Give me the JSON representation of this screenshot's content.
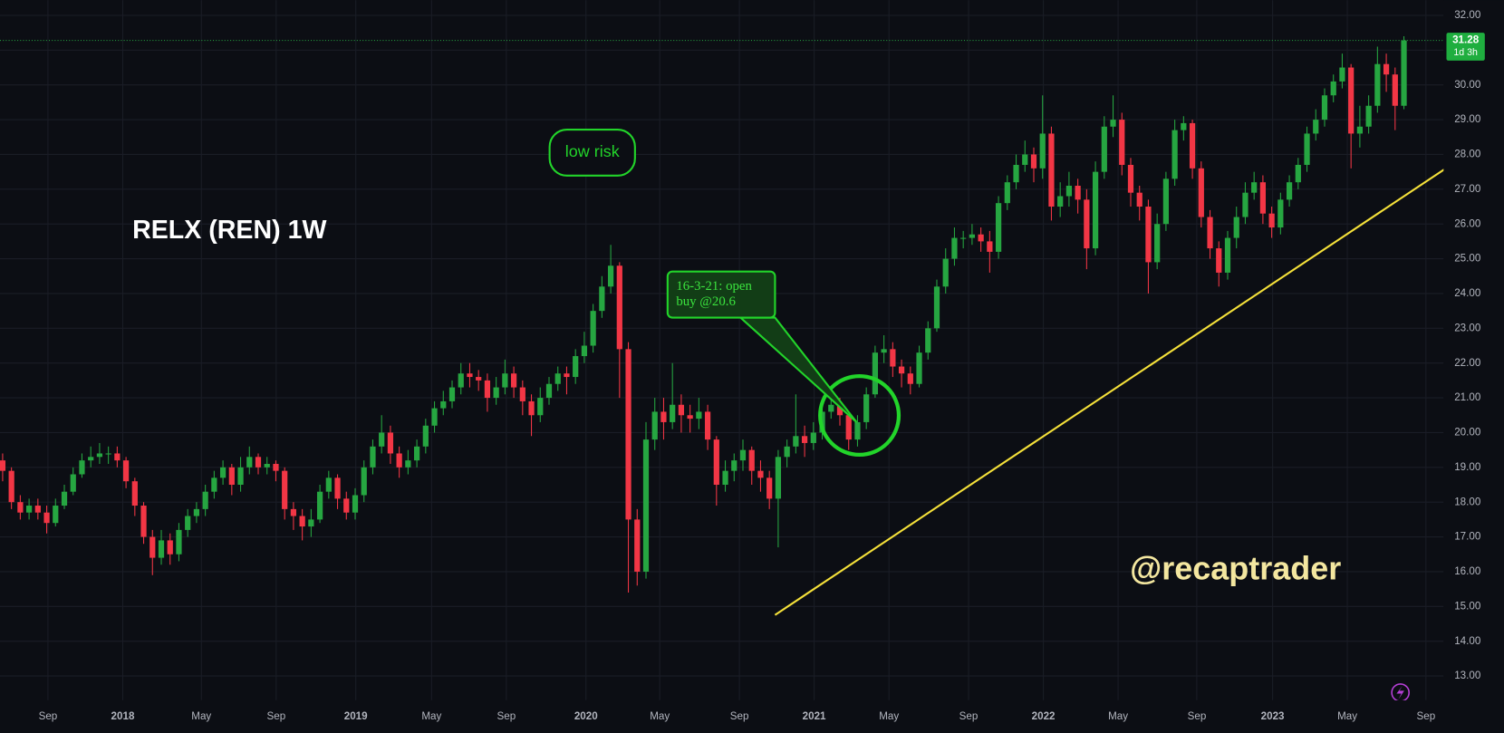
{
  "chart_data": {
    "type": "candlestick",
    "title": "RELX (REN) 1W",
    "watermark": "@recaptrader",
    "annotations": [
      "low risk",
      "16-3-21: open",
      "buy @20.6"
    ],
    "countdown": "1d 3h",
    "up_color": "#26a641",
    "down_color": "#f23645",
    "grid": true,
    "ylim": [
      12.3,
      32.44
    ],
    "yticks": [
      {
        "value": 13,
        "label": "13.00"
      },
      {
        "value": 14,
        "label": "14.00"
      },
      {
        "value": 15,
        "label": "15.00"
      },
      {
        "value": 16,
        "label": "16.00"
      },
      {
        "value": 17,
        "label": "17.00"
      },
      {
        "value": 18,
        "label": "18.00"
      },
      {
        "value": 19,
        "label": "19.00"
      },
      {
        "value": 20,
        "label": "20.00"
      },
      {
        "value": 21,
        "label": "21.00"
      },
      {
        "value": 22,
        "label": "22.00"
      },
      {
        "value": 23,
        "label": "23.00"
      },
      {
        "value": 24,
        "label": "24.00"
      },
      {
        "value": 25,
        "label": "25.00"
      },
      {
        "value": 26,
        "label": "26.00"
      },
      {
        "value": 27,
        "label": "27.00"
      },
      {
        "value": 28,
        "label": "28.00"
      },
      {
        "value": 29,
        "label": "29.00"
      },
      {
        "value": 30,
        "label": "30.00"
      },
      {
        "value": 31,
        "label": "31.00"
      },
      {
        "value": 32,
        "label": "32.00"
      }
    ],
    "xlim": [
      -0.3,
      163.5
    ],
    "xticks": [
      {
        "value": 5.14,
        "label": "Sep"
      },
      {
        "value": 13.63,
        "label": "2018"
      },
      {
        "value": 22.55,
        "label": "May"
      },
      {
        "value": 31.04,
        "label": "Sep"
      },
      {
        "value": 40.07,
        "label": "2019"
      },
      {
        "value": 48.67,
        "label": "May"
      },
      {
        "value": 57.15,
        "label": "Sep"
      },
      {
        "value": 66.19,
        "label": "2020"
      },
      {
        "value": 74.56,
        "label": "May"
      },
      {
        "value": 83.6,
        "label": "Sep"
      },
      {
        "value": 92.08,
        "label": "2021"
      },
      {
        "value": 100.57,
        "label": "May"
      },
      {
        "value": 109.6,
        "label": "Sep"
      },
      {
        "value": 118.09,
        "label": "2022"
      },
      {
        "value": 126.57,
        "label": "May"
      },
      {
        "value": 135.5,
        "label": "Sep"
      },
      {
        "value": 144.1,
        "label": "2023"
      },
      {
        "value": 152.58,
        "label": "May"
      },
      {
        "value": 161.5,
        "label": "Sep"
      }
    ],
    "open": [
      19.2,
      18.9,
      18.0,
      17.7,
      17.9,
      17.7,
      17.4,
      17.9,
      18.3,
      18.8,
      19.2,
      19.3,
      19.4,
      19.4,
      19.2,
      18.6,
      17.9,
      17.0,
      16.4,
      16.9,
      16.5,
      17.2,
      17.6,
      17.8,
      18.3,
      18.7,
      19.0,
      18.5,
      19.0,
      19.3,
      19.0,
      19.1,
      18.9,
      17.8,
      17.6,
      17.3,
      17.5,
      18.3,
      18.7,
      18.1,
      17.7,
      18.2,
      19.0,
      19.6,
      20.0,
      19.4,
      19.0,
      19.2,
      19.6,
      20.2,
      20.7,
      20.9,
      21.3,
      21.7,
      21.6,
      21.5,
      21.0,
      21.3,
      21.7,
      21.3,
      20.9,
      20.5,
      21.0,
      21.4,
      21.7,
      21.6,
      22.2,
      22.5,
      23.5,
      24.2,
      24.8,
      22.4,
      17.5,
      16.0,
      19.8,
      20.6,
      20.3,
      20.8,
      20.5,
      20.4,
      20.6,
      19.8,
      18.5,
      18.9,
      19.2,
      19.5,
      18.9,
      18.7,
      18.1,
      19.3,
      19.6,
      19.9,
      19.7,
      20.0,
      20.6,
      20.8,
      20.5,
      19.8,
      20.3,
      21.1,
      22.3,
      22.4,
      21.9,
      21.7,
      21.4,
      22.3,
      23.0,
      24.2,
      25.0,
      25.6,
      25.6,
      25.7,
      25.5,
      25.2,
      26.6,
      27.2,
      27.7,
      28.0,
      27.6,
      28.6,
      26.5,
      26.8,
      27.1,
      26.7,
      25.3,
      27.5,
      28.8,
      29.0,
      27.7,
      26.9,
      26.5,
      24.9,
      26.0,
      27.3,
      28.7,
      28.9,
      27.6,
      26.2,
      25.3,
      24.6,
      25.6,
      26.2,
      26.9,
      27.2,
      26.3,
      25.9,
      26.7,
      27.2,
      27.7,
      28.6,
      29.0,
      29.7,
      30.1,
      30.5,
      28.6,
      28.8,
      29.4,
      30.6,
      30.3,
      29.4
    ],
    "high": [
      19.4,
      19.0,
      18.2,
      18.1,
      18.1,
      17.9,
      18.1,
      18.5,
      19.0,
      19.4,
      19.6,
      19.7,
      19.6,
      19.6,
      19.3,
      18.7,
      18.0,
      17.2,
      17.2,
      17.1,
      17.4,
      17.8,
      18.0,
      18.5,
      18.9,
      19.2,
      19.1,
      19.3,
      19.6,
      19.4,
      19.3,
      19.2,
      19.0,
      18.0,
      17.8,
      17.8,
      18.5,
      18.9,
      18.8,
      18.3,
      18.4,
      19.2,
      19.8,
      20.5,
      20.2,
      19.6,
      19.5,
      19.8,
      20.4,
      20.9,
      21.2,
      21.5,
      22.0,
      22.0,
      21.8,
      21.7,
      21.6,
      22.1,
      21.9,
      21.5,
      21.1,
      21.3,
      21.6,
      21.9,
      21.9,
      22.4,
      22.9,
      23.7,
      24.5,
      25.4,
      24.9,
      22.6,
      17.8,
      20.3,
      21.0,
      21.0,
      22.0,
      21.1,
      20.8,
      21.0,
      20.8,
      19.9,
      19.2,
      19.4,
      19.8,
      19.6,
      19.2,
      18.9,
      19.5,
      19.8,
      21.1,
      20.2,
      20.3,
      20.9,
      21.3,
      21.0,
      20.6,
      20.5,
      21.3,
      22.5,
      22.8,
      22.6,
      22.1,
      21.9,
      22.5,
      23.2,
      24.4,
      25.3,
      25.9,
      25.8,
      26.0,
      25.9,
      25.8,
      26.8,
      27.4,
      28.0,
      28.4,
      28.2,
      29.7,
      28.8,
      27.2,
      27.5,
      27.3,
      27.0,
      27.8,
      29.1,
      29.7,
      29.2,
      27.9,
      27.1,
      26.7,
      26.3,
      27.5,
      29.0,
      29.1,
      29.0,
      27.8,
      26.4,
      25.5,
      25.8,
      26.5,
      27.2,
      27.5,
      27.4,
      26.5,
      26.9,
      27.4,
      27.9,
      28.8,
      29.3,
      29.9,
      30.3,
      30.9,
      30.6,
      29.4,
      29.7,
      31.1,
      30.9,
      30.5,
      31.4
    ],
    "low": [
      18.6,
      17.8,
      17.5,
      17.5,
      17.5,
      17.1,
      17.3,
      17.8,
      18.2,
      18.7,
      19.0,
      19.1,
      19.1,
      19.0,
      18.4,
      17.6,
      16.8,
      15.9,
      16.2,
      16.2,
      16.3,
      17.0,
      17.4,
      17.6,
      18.1,
      18.5,
      18.2,
      18.3,
      18.8,
      18.8,
      18.8,
      18.6,
      17.5,
      17.2,
      16.9,
      17.0,
      17.4,
      18.1,
      17.8,
      17.5,
      17.5,
      18.0,
      18.8,
      19.4,
      19.1,
      18.7,
      18.8,
      19.0,
      19.4,
      20.0,
      20.5,
      20.7,
      21.1,
      21.3,
      21.2,
      20.6,
      20.8,
      21.1,
      21.0,
      20.5,
      19.9,
      20.3,
      20.8,
      21.2,
      21.1,
      21.4,
      22.0,
      22.3,
      23.3,
      24.0,
      21.0,
      15.4,
      15.6,
      15.8,
      19.5,
      19.8,
      20.1,
      20.0,
      20.0,
      20.1,
      19.5,
      17.9,
      18.3,
      18.6,
      18.9,
      18.5,
      18.3,
      17.8,
      16.7,
      19.0,
      19.4,
      19.3,
      19.5,
      19.8,
      20.4,
      20.2,
      19.5,
      19.6,
      20.1,
      21.0,
      22.0,
      21.6,
      21.3,
      21.1,
      21.3,
      22.1,
      22.9,
      24.0,
      24.8,
      25.3,
      25.4,
      25.2,
      24.6,
      25.0,
      26.4,
      27.0,
      27.5,
      27.2,
      27.3,
      26.1,
      26.2,
      26.5,
      26.3,
      24.7,
      25.1,
      27.3,
      28.5,
      27.4,
      26.5,
      26.1,
      24.0,
      24.7,
      25.8,
      27.1,
      28.4,
      27.3,
      25.9,
      25.0,
      24.2,
      24.4,
      25.3,
      26.0,
      26.7,
      26.0,
      25.6,
      25.7,
      26.5,
      27.0,
      27.5,
      28.4,
      28.8,
      29.5,
      29.9,
      27.6,
      28.2,
      28.6,
      29.2,
      29.8,
      28.7,
      29.3
    ],
    "close": [
      18.9,
      18.0,
      17.7,
      17.9,
      17.7,
      17.4,
      17.9,
      18.3,
      18.8,
      19.2,
      19.3,
      19.4,
      19.4,
      19.2,
      18.6,
      17.9,
      17.0,
      16.4,
      16.9,
      16.5,
      17.2,
      17.6,
      17.8,
      18.3,
      18.7,
      19.0,
      18.5,
      19.0,
      19.3,
      19.0,
      19.1,
      18.9,
      17.8,
      17.6,
      17.3,
      17.5,
      18.3,
      18.7,
      18.1,
      17.7,
      18.2,
      19.0,
      19.6,
      20.0,
      19.4,
      19.0,
      19.2,
      19.6,
      20.2,
      20.7,
      20.9,
      21.3,
      21.7,
      21.6,
      21.5,
      21.0,
      21.3,
      21.7,
      21.3,
      20.9,
      20.5,
      21.0,
      21.4,
      21.7,
      21.6,
      22.2,
      22.5,
      23.5,
      24.2,
      24.8,
      22.4,
      17.5,
      16.0,
      19.8,
      20.6,
      20.3,
      20.8,
      20.5,
      20.4,
      20.6,
      19.8,
      18.5,
      18.9,
      19.2,
      19.5,
      18.9,
      18.7,
      18.1,
      19.3,
      19.6,
      19.9,
      19.7,
      20.0,
      20.6,
      20.8,
      20.5,
      19.8,
      20.3,
      21.1,
      22.3,
      22.4,
      21.9,
      21.7,
      21.4,
      22.3,
      23.0,
      24.2,
      25.0,
      25.6,
      25.6,
      25.7,
      25.5,
      25.2,
      26.6,
      27.2,
      27.7,
      28.0,
      27.6,
      28.6,
      26.5,
      26.8,
      27.1,
      26.7,
      25.3,
      27.5,
      28.8,
      29.0,
      27.7,
      26.9,
      26.5,
      24.9,
      26.0,
      27.3,
      28.7,
      28.9,
      27.6,
      26.2,
      25.3,
      24.6,
      25.6,
      26.2,
      26.9,
      27.2,
      26.3,
      25.9,
      26.7,
      27.2,
      27.7,
      28.6,
      29.0,
      29.7,
      30.1,
      30.5,
      28.6,
      28.8,
      29.4,
      30.6,
      30.3,
      29.4,
      31.28
    ]
  }
}
